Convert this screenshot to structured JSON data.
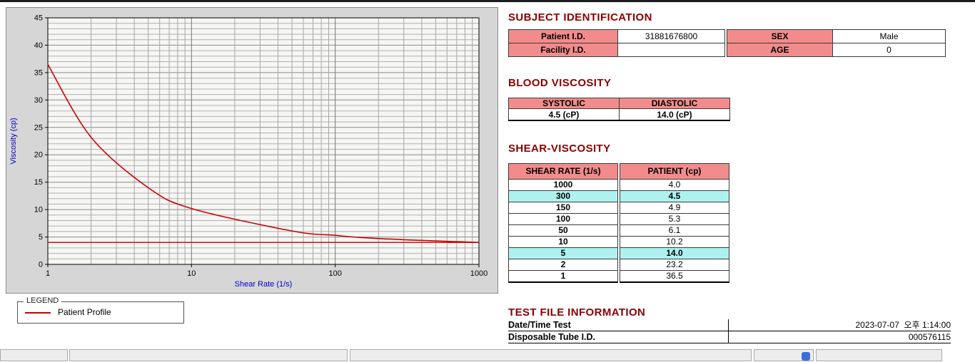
{
  "colors": {
    "heading": "#8b0000",
    "header_bg": "#f28c8c",
    "highlight_bg": "#aef2f0",
    "line": "#cc0000",
    "axis_label": "#0000cc"
  },
  "chart_data": {
    "type": "line",
    "x_scale": "log",
    "x": [
      1,
      2,
      5,
      10,
      50,
      100,
      150,
      300,
      1000
    ],
    "series": [
      {
        "name": "Patient Profile",
        "values": [
          36.5,
          23.2,
          14.0,
          10.2,
          6.1,
          5.3,
          4.9,
          4.5,
          4.0
        ]
      }
    ],
    "baseline": 4.0,
    "xlabel": "Shear Rate (1/s)",
    "ylabel": "Viscosity (cp)",
    "xlim": [
      1,
      1000
    ],
    "ylim": [
      0,
      45
    ],
    "x_ticks": [
      1,
      10,
      100,
      1000
    ],
    "y_ticks": [
      0,
      5,
      10,
      15,
      20,
      25,
      30,
      35,
      40,
      45
    ],
    "grid": "dense, log minor verticals, 1-unit horizontals",
    "legend_position": "below-left",
    "line_color": "#cc0000"
  },
  "legend": {
    "title": "LEGEND",
    "label": "Patient Profile"
  },
  "subject": {
    "heading": "SUBJECT IDENTIFICATION",
    "patient_id_label": "Patient I.D.",
    "patient_id_value": "31881676800",
    "facility_id_label": "Facility I.D.",
    "facility_id_value": "",
    "sex_label": "SEX",
    "sex_value": "Male",
    "age_label": "AGE",
    "age_value": "0"
  },
  "blood_viscosity": {
    "heading": "BLOOD VISCOSITY",
    "systolic_label": "SYSTOLIC",
    "diastolic_label": "DIASTOLIC",
    "systolic_value": "4.5 (cP)",
    "diastolic_value": "14.0 (cP)"
  },
  "shear_viscosity": {
    "heading": "SHEAR-VISCOSITY",
    "col1": "SHEAR RATE (1/s)",
    "col2": "PATIENT (cp)",
    "rows": [
      {
        "rate": "1000",
        "value": "4.0",
        "highlight": false
      },
      {
        "rate": "300",
        "value": "4.5",
        "highlight": true
      },
      {
        "rate": "150",
        "value": "4.9",
        "highlight": false
      },
      {
        "rate": "100",
        "value": "5.3",
        "highlight": false
      },
      {
        "rate": "50",
        "value": "6.1",
        "highlight": false
      },
      {
        "rate": "10",
        "value": "10.2",
        "highlight": false
      },
      {
        "rate": "5",
        "value": "14.0",
        "highlight": true
      },
      {
        "rate": "2",
        "value": "23.2",
        "highlight": false
      },
      {
        "rate": "1",
        "value": "36.5",
        "highlight": false
      }
    ]
  },
  "test_file": {
    "heading": "TEST FILE INFORMATION",
    "date_label": "Date/Time Test",
    "date_value": "2023-07-07  오후 1:14:00",
    "tube_label": "Disposable Tube I.D.",
    "tube_value": "000576115"
  }
}
